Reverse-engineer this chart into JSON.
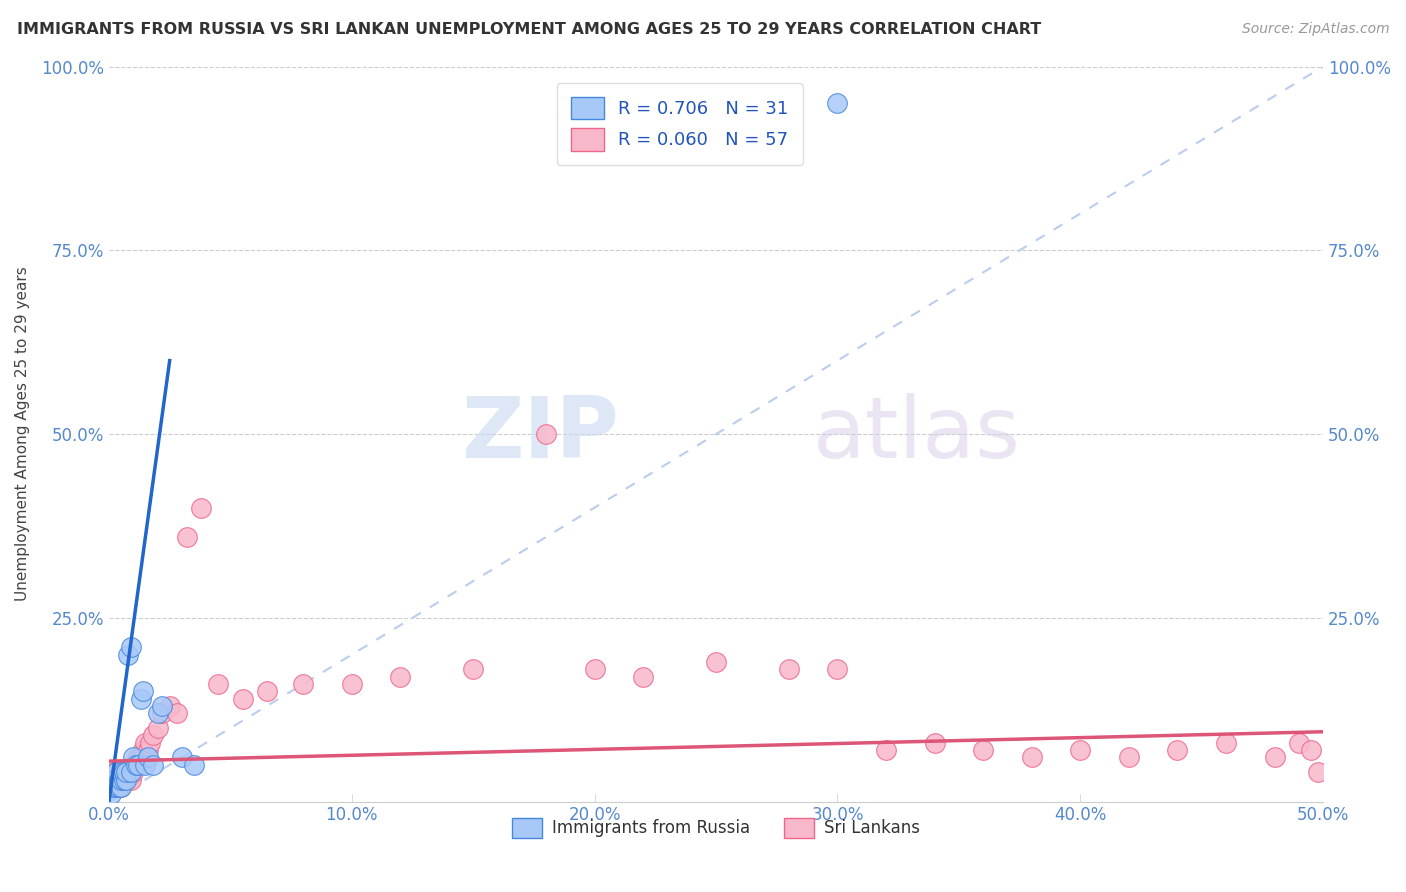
{
  "title": "IMMIGRANTS FROM RUSSIA VS SRI LANKAN UNEMPLOYMENT AMONG AGES 25 TO 29 YEARS CORRELATION CHART",
  "source": "Source: ZipAtlas.com",
  "ylabel": "Unemployment Among Ages 25 to 29 years",
  "xlim": [
    0.0,
    0.5
  ],
  "ylim": [
    0.0,
    1.0
  ],
  "xticks": [
    0.0,
    0.1,
    0.2,
    0.3,
    0.4,
    0.5
  ],
  "yticks": [
    0.0,
    0.25,
    0.5,
    0.75,
    1.0
  ],
  "ytick_labels": [
    "",
    "25.0%",
    "50.0%",
    "75.0%",
    "100.0%"
  ],
  "xtick_labels": [
    "0.0%",
    "10.0%",
    "20.0%",
    "30.0%",
    "40.0%",
    "50.0%"
  ],
  "legend_R_russia": "R = 0.706",
  "legend_N_russia": "N = 31",
  "legend_R_sri": "R = 0.060",
  "legend_N_sri": "N = 57",
  "color_russia_fill": "#a8c8f8",
  "color_sri_fill": "#f8b8cc",
  "color_russia_edge": "#4488dd",
  "color_sri_edge": "#ee6688",
  "color_russia_line": "#2266cc",
  "color_sri_line": "#dd5577",
  "color_diag": "#bbccee",
  "watermark_zip": "ZIP",
  "watermark_atlas": "atlas",
  "russia_x": [
    0.001,
    0.002,
    0.002,
    0.003,
    0.003,
    0.003,
    0.004,
    0.004,
    0.005,
    0.005,
    0.005,
    0.006,
    0.006,
    0.007,
    0.007,
    0.008,
    0.009,
    0.009,
    0.01,
    0.011,
    0.012,
    0.013,
    0.014,
    0.015,
    0.016,
    0.018,
    0.02,
    0.022,
    0.03,
    0.035,
    0.3
  ],
  "russia_y": [
    0.01,
    0.02,
    0.03,
    0.02,
    0.03,
    0.04,
    0.02,
    0.03,
    0.02,
    0.03,
    0.04,
    0.03,
    0.04,
    0.03,
    0.04,
    0.2,
    0.21,
    0.04,
    0.06,
    0.05,
    0.05,
    0.14,
    0.15,
    0.05,
    0.06,
    0.05,
    0.12,
    0.13,
    0.06,
    0.05,
    0.95
  ],
  "sri_x": [
    0.001,
    0.002,
    0.002,
    0.003,
    0.003,
    0.004,
    0.004,
    0.005,
    0.005,
    0.006,
    0.006,
    0.007,
    0.007,
    0.008,
    0.008,
    0.009,
    0.01,
    0.01,
    0.011,
    0.012,
    0.013,
    0.014,
    0.015,
    0.016,
    0.017,
    0.018,
    0.02,
    0.022,
    0.025,
    0.028,
    0.032,
    0.038,
    0.045,
    0.055,
    0.065,
    0.08,
    0.1,
    0.12,
    0.15,
    0.18,
    0.2,
    0.22,
    0.25,
    0.28,
    0.3,
    0.32,
    0.34,
    0.36,
    0.38,
    0.4,
    0.42,
    0.44,
    0.46,
    0.48,
    0.49,
    0.495,
    0.498
  ],
  "sri_y": [
    0.03,
    0.02,
    0.04,
    0.02,
    0.03,
    0.02,
    0.03,
    0.02,
    0.03,
    0.03,
    0.04,
    0.03,
    0.04,
    0.03,
    0.04,
    0.03,
    0.04,
    0.05,
    0.05,
    0.06,
    0.06,
    0.07,
    0.08,
    0.07,
    0.08,
    0.09,
    0.1,
    0.12,
    0.13,
    0.12,
    0.36,
    0.4,
    0.16,
    0.14,
    0.15,
    0.16,
    0.16,
    0.17,
    0.18,
    0.5,
    0.18,
    0.17,
    0.19,
    0.18,
    0.18,
    0.07,
    0.08,
    0.07,
    0.06,
    0.07,
    0.06,
    0.07,
    0.08,
    0.06,
    0.08,
    0.07,
    0.04
  ],
  "russia_line_x": [
    0.0,
    0.025
  ],
  "russia_line_y": [
    0.0,
    0.6
  ],
  "sri_line_x": [
    0.0,
    0.5
  ],
  "sri_line_y": [
    0.055,
    0.095
  ]
}
